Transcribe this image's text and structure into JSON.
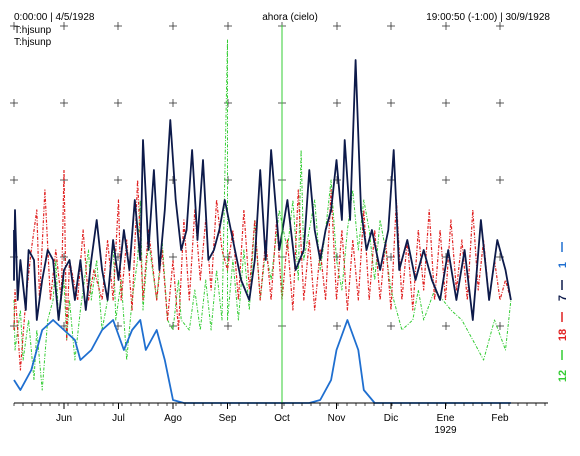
{
  "header": {
    "left": "0:00:00 | 4/5/1928",
    "center": "ahora (cielo)",
    "right": "19:00:50 (-1:00) | 30/9/1928",
    "subtitles": [
      "T:hjsunp",
      "T:hjsunp"
    ]
  },
  "chart_data": {
    "type": "line",
    "months": [
      "Jun",
      "Jul",
      "Ago",
      "Sep",
      "Oct",
      "Nov",
      "Dic",
      "Ene",
      "Feb"
    ],
    "year_label": "1929",
    "year_under": "Ene",
    "grid": "plus-markers",
    "legend": [
      {
        "name": "1",
        "color": "#1f6fd0"
      },
      {
        "name": "7",
        "color": "#0d1a4a"
      },
      {
        "name": "18",
        "color": "#e02020"
      },
      {
        "name": "12",
        "color": "#33cc33"
      }
    ],
    "series": [
      {
        "name": "12",
        "color": "#33cc33",
        "width": 1.0,
        "dash": "3,1.5,1,1.5",
        "points": [
          [
            0,
            300
          ],
          [
            0.1,
            350
          ],
          [
            0.2,
            310
          ],
          [
            0.25,
            360
          ],
          [
            0.35,
            320
          ],
          [
            0.45,
            380
          ],
          [
            0.5,
            330
          ],
          [
            0.6,
            390
          ],
          [
            0.7,
            320
          ],
          [
            0.8,
            300
          ],
          [
            0.85,
            260
          ],
          [
            0.9,
            320
          ],
          [
            1,
            280
          ],
          [
            1.05,
            340
          ],
          [
            1.1,
            300
          ],
          [
            1.2,
            360
          ],
          [
            1.3,
            310
          ],
          [
            1.45,
            250
          ],
          [
            1.5,
            300
          ],
          [
            1.6,
            260
          ],
          [
            1.7,
            330
          ],
          [
            1.8,
            300
          ],
          [
            1.9,
            240
          ],
          [
            1.95,
            320
          ],
          [
            2.05,
            280
          ],
          [
            2.15,
            360
          ],
          [
            2.25,
            300
          ],
          [
            2.35,
            260
          ],
          [
            2.4,
            200
          ],
          [
            2.45,
            310
          ],
          [
            2.55,
            240
          ],
          [
            2.7,
            300
          ],
          [
            2.8,
            240
          ],
          [
            2.9,
            320
          ],
          [
            3.0,
            330
          ],
          [
            3.1,
            280
          ],
          [
            3.15,
            320
          ],
          [
            3.3,
            330
          ],
          [
            3.4,
            290
          ],
          [
            3.5,
            330
          ],
          [
            3.6,
            280
          ],
          [
            3.7,
            330
          ],
          [
            3.8,
            270
          ],
          [
            3.9,
            320
          ],
          [
            4.0,
            40
          ],
          [
            4.0,
            320
          ],
          [
            4.1,
            260
          ],
          [
            4.2,
            320
          ],
          [
            4.3,
            250
          ],
          [
            4.4,
            310
          ],
          [
            4.5,
            220
          ],
          [
            4.6,
            300
          ],
          [
            4.7,
            250
          ],
          [
            4.8,
            280
          ],
          [
            4.95,
            210
          ],
          [
            5.1,
            250
          ],
          [
            5.2,
            200
          ],
          [
            5.3,
            280
          ],
          [
            5.35,
            150
          ],
          [
            5.4,
            260
          ],
          [
            5.5,
            230
          ],
          [
            5.6,
            200
          ],
          [
            5.7,
            270
          ],
          [
            5.8,
            230
          ],
          [
            5.9,
            180
          ],
          [
            6.0,
            260
          ],
          [
            6.1,
            290
          ],
          [
            6.2,
            230
          ],
          [
            6.3,
            190
          ],
          [
            6.4,
            250
          ],
          [
            6.5,
            200
          ],
          [
            6.6,
            230
          ],
          [
            6.7,
            280
          ],
          [
            6.8,
            220
          ],
          [
            6.9,
            250
          ],
          [
            7.0,
            290
          ],
          [
            7.2,
            330
          ],
          [
            7.4,
            320
          ],
          [
            7.5,
            290
          ],
          [
            7.6,
            320
          ],
          [
            7.8,
            290
          ],
          [
            7.95,
            300
          ],
          [
            8.1,
            310
          ],
          [
            8.3,
            320
          ],
          [
            8.5,
            340
          ],
          [
            8.7,
            360
          ],
          [
            8.9,
            320
          ],
          [
            9.1,
            350
          ],
          [
            9.2,
            300
          ]
        ],
        "points_unit": "display",
        "note": ""
      },
      {
        "name": "18",
        "color": "#e02020",
        "width": 1.2,
        "dash": "3,1.5,1,1.5",
        "points": [
          [
            0,
            330
          ],
          [
            0.1,
            290
          ],
          [
            0.2,
            370
          ],
          [
            0.3,
            300
          ],
          [
            0.4,
            250
          ],
          [
            0.5,
            210
          ],
          [
            0.55,
            300
          ],
          [
            0.65,
            190
          ],
          [
            0.75,
            300
          ],
          [
            0.85,
            250
          ],
          [
            0.95,
            300
          ],
          [
            1.0,
            170
          ],
          [
            1.05,
            340
          ],
          [
            1.1,
            260
          ],
          [
            1.25,
            300
          ],
          [
            1.35,
            230
          ],
          [
            1.45,
            300
          ],
          [
            1.55,
            270
          ],
          [
            1.7,
            300
          ],
          [
            1.8,
            240
          ],
          [
            1.9,
            300
          ],
          [
            2.0,
            200
          ],
          [
            2.05,
            300
          ],
          [
            2.15,
            240
          ],
          [
            2.25,
            310
          ],
          [
            2.35,
            180
          ],
          [
            2.45,
            300
          ],
          [
            2.55,
            230
          ],
          [
            2.7,
            300
          ],
          [
            2.8,
            250
          ],
          [
            2.9,
            320
          ],
          [
            3.0,
            260
          ],
          [
            3.1,
            330
          ],
          [
            3.2,
            220
          ],
          [
            3.3,
            300
          ],
          [
            3.4,
            210
          ],
          [
            3.5,
            280
          ],
          [
            3.6,
            220
          ],
          [
            3.7,
            290
          ],
          [
            3.8,
            200
          ],
          [
            3.9,
            250
          ],
          [
            4.0,
            270
          ],
          [
            4.1,
            230
          ],
          [
            4.2,
            300
          ],
          [
            4.3,
            210
          ],
          [
            4.4,
            290
          ],
          [
            4.5,
            220
          ],
          [
            4.6,
            300
          ],
          [
            4.7,
            240
          ],
          [
            4.8,
            300
          ],
          [
            4.9,
            220
          ],
          [
            5.0,
            300
          ],
          [
            5.1,
            240
          ],
          [
            5.2,
            310
          ],
          [
            5.3,
            190
          ],
          [
            5.4,
            300
          ],
          [
            5.5,
            240
          ],
          [
            5.6,
            310
          ],
          [
            5.7,
            250
          ],
          [
            5.8,
            300
          ],
          [
            5.9,
            190
          ],
          [
            6.0,
            300
          ],
          [
            6.1,
            230
          ],
          [
            6.2,
            310
          ],
          [
            6.3,
            240
          ],
          [
            6.4,
            300
          ],
          [
            6.5,
            210
          ],
          [
            6.6,
            300
          ],
          [
            6.7,
            230
          ],
          [
            6.8,
            300
          ],
          [
            6.9,
            240
          ],
          [
            7.0,
            310
          ],
          [
            7.1,
            200
          ],
          [
            7.2,
            300
          ],
          [
            7.3,
            240
          ],
          [
            7.4,
            310
          ],
          [
            7.5,
            230
          ],
          [
            7.6,
            290
          ],
          [
            7.7,
            210
          ],
          [
            7.8,
            300
          ],
          [
            7.9,
            230
          ],
          [
            8.0,
            300
          ],
          [
            8.1,
            220
          ],
          [
            8.2,
            290
          ],
          [
            8.3,
            240
          ],
          [
            8.4,
            300
          ],
          [
            8.5,
            210
          ],
          [
            8.6,
            290
          ],
          [
            8.7,
            240
          ],
          [
            8.8,
            300
          ],
          [
            8.9,
            260
          ],
          [
            9.0,
            300
          ],
          [
            9.1,
            280
          ],
          [
            9.2,
            300
          ]
        ],
        "points_unit": "display",
        "note": ""
      },
      {
        "name": "7",
        "color": "#0d1a4a",
        "width": 1.8,
        "dash": "",
        "points": [
          [
            0,
            230
          ],
          [
            0.05,
            280
          ],
          [
            0.1,
            210
          ],
          [
            0.15,
            300
          ],
          [
            0.2,
            260
          ],
          [
            0.3,
            310
          ],
          [
            0.35,
            250
          ],
          [
            0.45,
            260
          ],
          [
            0.5,
            320
          ],
          [
            0.6,
            280
          ],
          [
            0.7,
            250
          ],
          [
            0.8,
            260
          ],
          [
            0.9,
            320
          ],
          [
            1.0,
            270
          ],
          [
            1.1,
            260
          ],
          [
            1.2,
            300
          ],
          [
            1.3,
            260
          ],
          [
            1.4,
            310
          ],
          [
            1.5,
            260
          ],
          [
            1.6,
            220
          ],
          [
            1.7,
            270
          ],
          [
            1.8,
            300
          ],
          [
            1.9,
            240
          ],
          [
            2.0,
            280
          ],
          [
            2.1,
            230
          ],
          [
            2.2,
            270
          ],
          [
            2.3,
            200
          ],
          [
            2.4,
            260
          ],
          [
            2.45,
            140
          ],
          [
            2.55,
            250
          ],
          [
            2.65,
            170
          ],
          [
            2.75,
            270
          ],
          [
            2.85,
            210
          ],
          [
            2.95,
            120
          ],
          [
            3.05,
            200
          ],
          [
            3.15,
            250
          ],
          [
            3.25,
            230
          ],
          [
            3.35,
            150
          ],
          [
            3.45,
            240
          ],
          [
            3.55,
            160
          ],
          [
            3.65,
            260
          ],
          [
            3.75,
            250
          ],
          [
            3.85,
            230
          ],
          [
            3.95,
            200
          ],
          [
            4.1,
            240
          ],
          [
            4.25,
            280
          ],
          [
            4.4,
            300
          ],
          [
            4.5,
            260
          ],
          [
            4.6,
            170
          ],
          [
            4.7,
            260
          ],
          [
            4.8,
            150
          ],
          [
            4.95,
            250
          ],
          [
            5.1,
            200
          ],
          [
            5.25,
            270
          ],
          [
            5.4,
            250
          ],
          [
            5.5,
            170
          ],
          [
            5.6,
            230
          ],
          [
            5.7,
            260
          ],
          [
            5.8,
            230
          ],
          [
            5.9,
            210
          ],
          [
            6.0,
            160
          ],
          [
            6.1,
            220
          ],
          [
            6.15,
            140
          ],
          [
            6.25,
            220
          ],
          [
            6.35,
            60
          ],
          [
            6.45,
            210
          ],
          [
            6.55,
            250
          ],
          [
            6.65,
            230
          ],
          [
            6.8,
            270
          ],
          [
            6.95,
            230
          ],
          [
            7.05,
            150
          ],
          [
            7.15,
            270
          ],
          [
            7.3,
            240
          ],
          [
            7.45,
            280
          ],
          [
            7.6,
            250
          ],
          [
            7.75,
            280
          ],
          [
            7.9,
            300
          ],
          [
            8.05,
            250
          ],
          [
            8.2,
            300
          ],
          [
            8.35,
            250
          ],
          [
            8.5,
            320
          ],
          [
            8.65,
            220
          ],
          [
            8.8,
            300
          ],
          [
            8.95,
            240
          ],
          [
            9.1,
            270
          ],
          [
            9.2,
            300
          ]
        ],
        "points_unit": "display",
        "note": ""
      },
      {
        "name": "1",
        "color": "#1f6fd0",
        "width": 1.8,
        "dash": "",
        "points": [
          [
            0,
            380
          ],
          [
            0.2,
            390
          ],
          [
            0.4,
            370
          ],
          [
            0.6,
            330
          ],
          [
            0.8,
            320
          ],
          [
            1.0,
            330
          ],
          [
            1.2,
            340
          ],
          [
            1.3,
            360
          ],
          [
            1.5,
            350
          ],
          [
            1.7,
            330
          ],
          [
            1.9,
            320
          ],
          [
            2.1,
            350
          ],
          [
            2.25,
            330
          ],
          [
            2.4,
            320
          ],
          [
            2.5,
            350
          ],
          [
            2.7,
            330
          ],
          [
            2.85,
            360
          ],
          [
            3.0,
            400
          ],
          [
            3.2,
            403
          ],
          [
            4.0,
            403
          ],
          [
            5.0,
            403
          ],
          [
            5.5,
            403
          ],
          [
            5.7,
            400
          ],
          [
            5.9,
            380
          ],
          [
            6.0,
            350
          ],
          [
            6.2,
            320
          ],
          [
            6.4,
            350
          ],
          [
            6.5,
            390
          ],
          [
            6.7,
            403
          ],
          [
            7.5,
            403
          ],
          [
            8.5,
            403
          ],
          [
            9.2,
            403
          ]
        ],
        "points_unit": "display",
        "note": ""
      }
    ]
  }
}
